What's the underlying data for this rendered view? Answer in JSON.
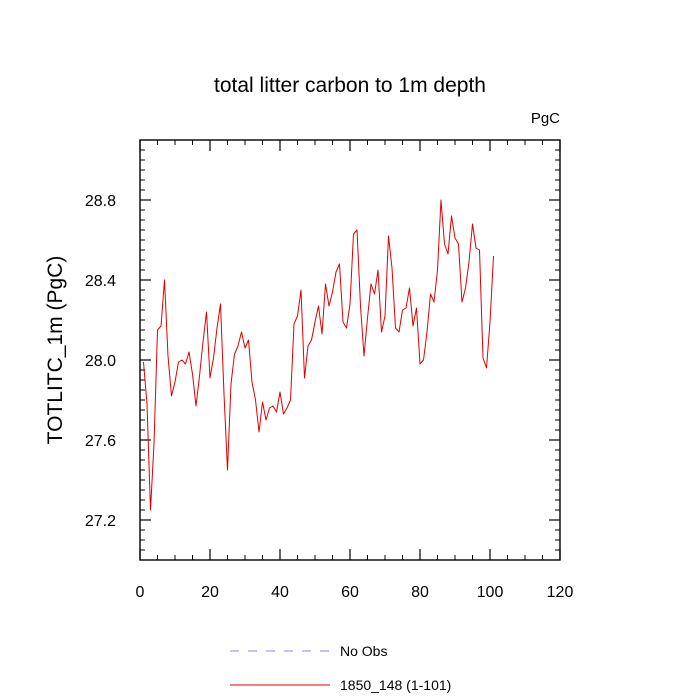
{
  "chart_data": {
    "type": "line",
    "title": "total litter carbon to 1m depth",
    "units_label": "PgC",
    "xlabel": "",
    "ylabel": "TOTLITC_1m  (PgC)",
    "xlim": [
      0,
      120
    ],
    "ylim": [
      27.0,
      29.1
    ],
    "x_ticks": [
      0,
      20,
      40,
      60,
      80,
      100,
      120
    ],
    "y_ticks": [
      27.2,
      27.6,
      28.0,
      28.4,
      28.8
    ],
    "x_tick_labels": [
      "0",
      "20",
      "40",
      "60",
      "80",
      "100",
      "120"
    ],
    "y_tick_labels": [
      "27.2",
      "27.6",
      "28.0",
      "28.4",
      "28.8"
    ],
    "grid": false,
    "legend_placement": "bottom",
    "series": [
      {
        "name": "No Obs",
        "color": "#8a8ae6",
        "dashed": true,
        "values": []
      },
      {
        "name": "1850_148 (1-101)",
        "color": "#e00000",
        "dashed": false,
        "x": [
          1,
          2,
          3,
          4,
          5,
          6,
          7,
          8,
          9,
          10,
          11,
          12,
          13,
          14,
          15,
          16,
          17,
          18,
          19,
          20,
          21,
          22,
          23,
          24,
          25,
          26,
          27,
          28,
          29,
          30,
          31,
          32,
          33,
          34,
          35,
          36,
          37,
          38,
          39,
          40,
          41,
          42,
          43,
          44,
          45,
          46,
          47,
          48,
          49,
          50,
          51,
          52,
          53,
          54,
          55,
          56,
          57,
          58,
          59,
          60,
          61,
          62,
          63,
          64,
          65,
          66,
          67,
          68,
          69,
          70,
          71,
          72,
          73,
          74,
          75,
          76,
          77,
          78,
          79,
          80,
          81,
          82,
          83,
          84,
          85,
          86,
          87,
          88,
          89,
          90,
          91,
          92,
          93,
          94,
          95,
          96,
          97,
          98,
          99,
          100,
          101
        ],
        "values": [
          27.99,
          27.78,
          27.25,
          27.58,
          28.15,
          28.17,
          28.4,
          28.02,
          27.82,
          27.89,
          27.99,
          28.0,
          27.98,
          28.04,
          27.93,
          27.77,
          27.92,
          28.09,
          28.24,
          27.91,
          28.01,
          28.16,
          28.28,
          27.83,
          27.45,
          27.88,
          28.03,
          28.07,
          28.14,
          28.06,
          28.1,
          27.89,
          27.8,
          27.64,
          27.79,
          27.7,
          27.76,
          27.77,
          27.74,
          27.84,
          27.73,
          27.76,
          27.8,
          28.18,
          28.22,
          28.35,
          27.91,
          28.07,
          28.1,
          28.19,
          28.27,
          28.13,
          28.38,
          28.27,
          28.34,
          28.44,
          28.48,
          28.19,
          28.16,
          28.28,
          28.63,
          28.65,
          28.27,
          28.02,
          28.21,
          28.38,
          28.33,
          28.45,
          28.14,
          28.22,
          28.62,
          28.46,
          28.16,
          28.14,
          28.25,
          28.26,
          28.36,
          28.17,
          28.26,
          27.98,
          28.0,
          28.14,
          28.33,
          28.29,
          28.45,
          28.8,
          28.58,
          28.53,
          28.72,
          28.61,
          28.58,
          28.29,
          28.36,
          28.49,
          28.68,
          28.56,
          28.55,
          28.01,
          27.96,
          28.19,
          28.52
        ]
      }
    ]
  }
}
